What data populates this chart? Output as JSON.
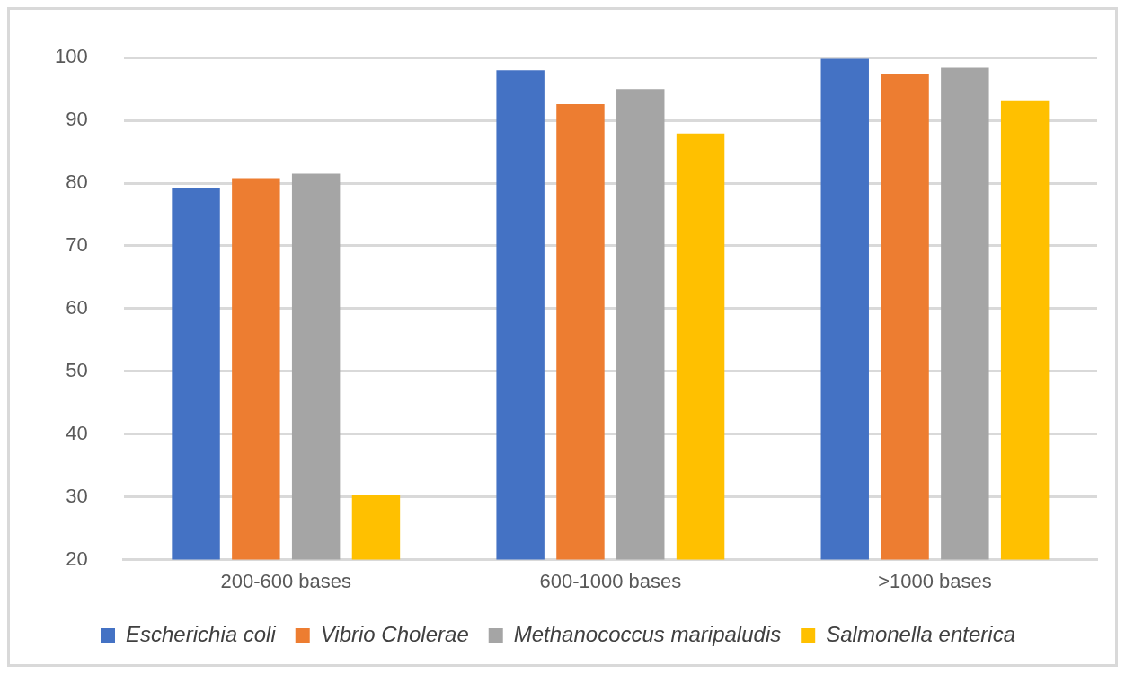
{
  "chart_data": {
    "type": "bar",
    "categories": [
      "200-600 bases",
      "600-1000 bases",
      ">1000 bases"
    ],
    "series": [
      {
        "name": "Escherichia coli",
        "color": "#4472c4",
        "values": [
          79.2,
          98.0,
          99.8
        ]
      },
      {
        "name": "Vibrio Cholerae",
        "color": "#ed7d31",
        "values": [
          80.8,
          92.6,
          97.3
        ]
      },
      {
        "name": "Methanococcus maripaludis",
        "color": "#a5a5a5",
        "values": [
          81.5,
          95.0,
          98.4
        ]
      },
      {
        "name": "Salmonella enterica",
        "color": "#ffc000",
        "values": [
          30.3,
          87.9,
          93.2
        ]
      }
    ],
    "ylim": [
      20,
      100
    ],
    "yticks": [
      20,
      30,
      40,
      50,
      60,
      70,
      80,
      90,
      100
    ],
    "grid": "y",
    "legend": "bottom"
  }
}
